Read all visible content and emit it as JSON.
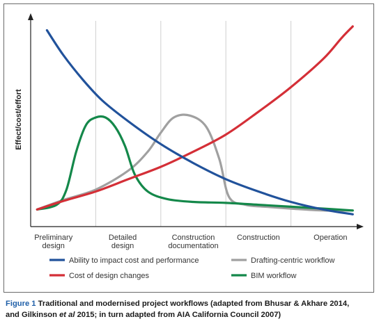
{
  "chart_data": {
    "type": "line",
    "ylabel": "Effect/cost/effort",
    "xlabel": "",
    "categories": [
      [
        "Preliminary",
        "design"
      ],
      [
        "Detailed",
        "design"
      ],
      [
        "Construction",
        "documentation"
      ],
      [
        "Construction"
      ],
      [
        "Operation"
      ]
    ],
    "x_range": [
      0,
      5
    ],
    "ylim": [
      0,
      100
    ],
    "grid": "vertical",
    "legend_position": "bottom",
    "series": [
      {
        "name": "Ability to impact cost and performance",
        "color": "#21529b",
        "x": [
          0.25,
          0.5,
          0.8,
          1.1,
          1.5,
          2.0,
          2.5,
          3.0,
          3.5,
          4.0,
          4.5,
          4.95
        ],
        "y": [
          98,
          85,
          72,
          61,
          50,
          38,
          28,
          19.5,
          13,
          7.5,
          3.5,
          1
        ]
      },
      {
        "name": "Cost of design changes",
        "color": "#d42f37",
        "x": [
          0.1,
          0.5,
          1.0,
          1.5,
          2.0,
          2.5,
          3.0,
          3.5,
          4.0,
          4.5,
          4.78,
          4.95
        ],
        "y": [
          3.5,
          8,
          13,
          19.5,
          26,
          34,
          43,
          55,
          68,
          83,
          94,
          100
        ]
      },
      {
        "name": "Drafting-centric workflow",
        "color": "#a0a0a0",
        "x": [
          0.1,
          0.5,
          1.0,
          1.5,
          1.8,
          2.0,
          2.2,
          2.45,
          2.7,
          2.9,
          3.05,
          3.3,
          3.6,
          4.0,
          4.5,
          4.95
        ],
        "y": [
          3.5,
          8.5,
          14,
          24,
          34,
          44,
          52,
          53,
          47,
          30,
          10,
          6,
          5,
          4,
          3,
          3
        ]
      },
      {
        "name": "BIM workflow",
        "color": "#14884a",
        "x": [
          0.1,
          0.4,
          0.55,
          0.7,
          0.85,
          1.0,
          1.15,
          1.3,
          1.45,
          1.6,
          1.8,
          2.1,
          2.5,
          3.0,
          3.5,
          4.0,
          4.5,
          4.95
        ],
        "y": [
          3.5,
          6,
          14,
          34,
          48,
          52,
          52,
          47,
          37,
          22,
          13,
          9,
          7.5,
          7,
          6,
          5,
          4,
          3
        ]
      }
    ]
  },
  "caption": {
    "figure_label": "Figure 1",
    "line1": "Traditional and modernised project workflows (adapted from Bhusar & Akhare 2014,",
    "line2_before": "and Gilkinson ",
    "line2_italic": "et al",
    "line2_after": " 2015; in turn adapted from AIA California Council 2007)"
  }
}
